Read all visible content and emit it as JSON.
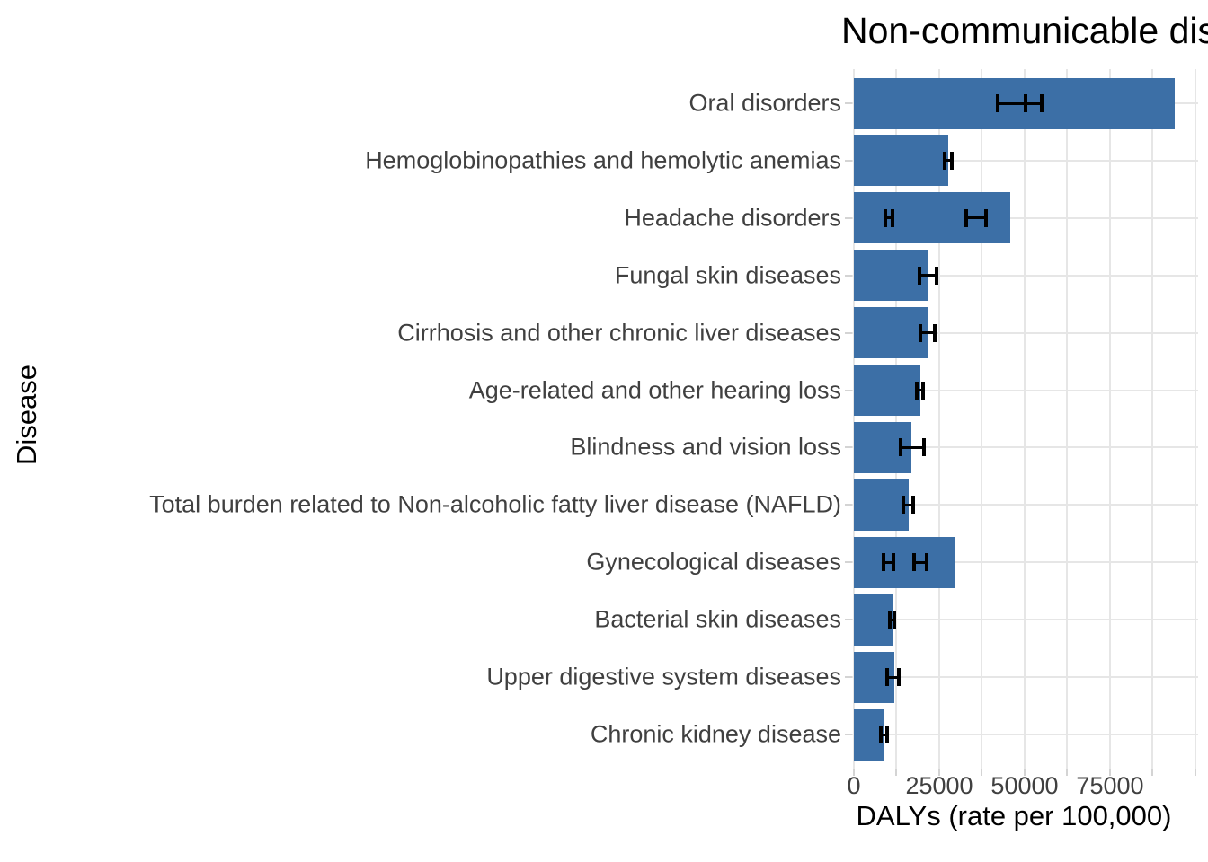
{
  "chart_data": {
    "type": "bar",
    "orientation": "horizontal",
    "title": "Non-communicable diseases",
    "xlabel": "DALYs (rate per 100,000)",
    "ylabel": "Disease",
    "x_ticks": [
      0,
      25000,
      50000,
      75000
    ],
    "x_grid_step": 12500,
    "xlim": [
      0,
      100800
    ],
    "grid": true,
    "legend_position": "none",
    "categories": [
      "Oral disorders",
      "Hemoglobinopathies and hemolytic anemias",
      "Headache disorders",
      "Fungal skin diseases",
      "Cirrhosis and other chronic liver diseases",
      "Age-related and other hearing loss",
      "Blindness and vision loss",
      "Total burden related to Non-alcoholic fatty liver disease (NAFLD)",
      "Gynecological diseases",
      "Bacterial skin diseases",
      "Upper digestive system diseases",
      "Chronic kidney disease"
    ],
    "values": [
      94000,
      27600,
      45900,
      21800,
      21900,
      19500,
      16800,
      16100,
      29400,
      11200,
      11800,
      8800
    ],
    "error_bars": [
      [
        [
          42100,
          50200
        ],
        [
          50200,
          55000
        ]
      ],
      [
        [
          26600,
          28700
        ]
      ],
      [
        [
          9200,
          11300
        ],
        [
          32900,
          38600
        ]
      ],
      [
        [
          19300,
          24100
        ]
      ],
      [
        [
          19500,
          23700
        ]
      ],
      [
        [
          18400,
          20300
        ]
      ],
      [
        [
          13600,
          20600
        ]
      ],
      [
        [
          14500,
          17500
        ]
      ],
      [
        [
          8600,
          11600
        ],
        [
          17700,
          21200
        ]
      ],
      [
        [
          10500,
          11800
        ]
      ],
      [
        [
          9700,
          13200
        ]
      ],
      [
        [
          7900,
          9800
        ]
      ]
    ],
    "colors": {
      "bar": "#3C6FA6",
      "grid": "#E6E6E6",
      "tick_mark": "#D4D4D4",
      "axis_text": "#404040",
      "title_text": "#000000",
      "error_bar": "#000000"
    }
  }
}
